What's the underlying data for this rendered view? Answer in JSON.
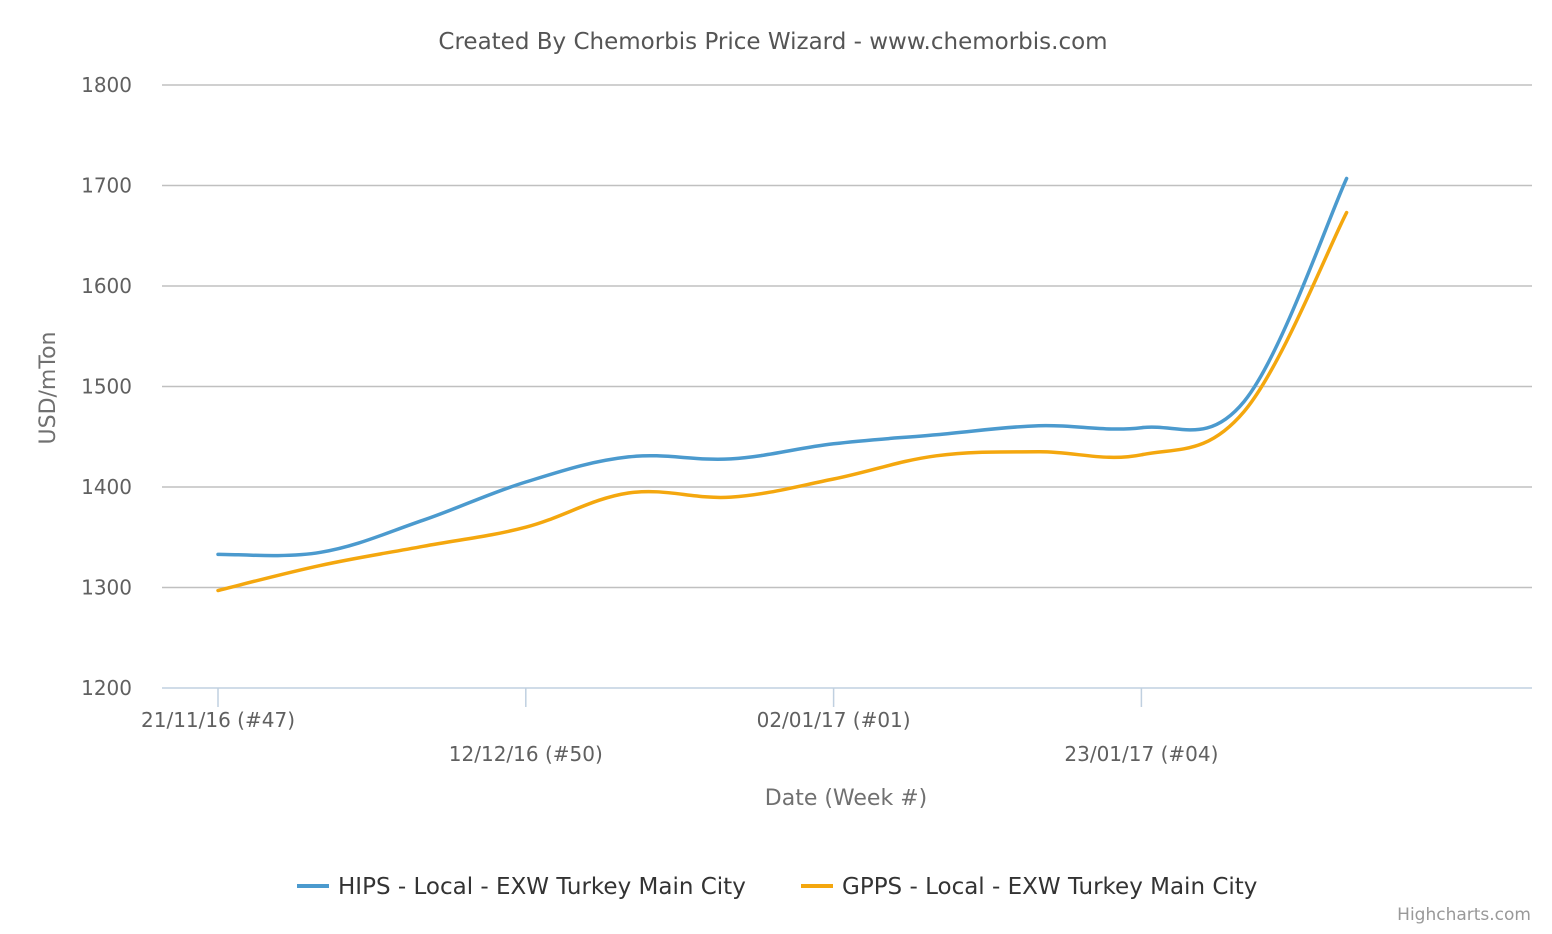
{
  "chart_data": {
    "type": "line",
    "title": "Created By Chemorbis Price Wizard - www.chemorbis.com",
    "xlabel": "Date (Week #)",
    "ylabel": "USD/mTon",
    "ylim": [
      1200,
      1800
    ],
    "yticks": [
      1200,
      1300,
      1400,
      1500,
      1600,
      1700,
      1800
    ],
    "grid": true,
    "legend_position": "bottom-center",
    "x": [
      "21/11/16",
      "28/11/16",
      "05/12/16",
      "12/12/16",
      "19/12/16",
      "26/12/16",
      "02/01/17",
      "09/01/17",
      "16/01/17",
      "23/01/17",
      "30/01/17",
      "06/02/17"
    ],
    "x_tick_labels": [
      {
        "x": "21/11/16",
        "label": "21/11/16 (#47)"
      },
      {
        "x": "12/12/16",
        "label": "12/12/16 (#50)"
      },
      {
        "x": "02/01/17",
        "label": "02/01/17 (#01)"
      },
      {
        "x": "23/01/17",
        "label": "23/01/17 (#04)"
      }
    ],
    "series": [
      {
        "name": "HIPS - Local - EXW Turkey Main City",
        "color": "#4b9ace",
        "values": [
          1333,
          1335,
          1367,
          1405,
          1430,
          1428,
          1443,
          1452,
          1461,
          1459,
          1485,
          1707
        ]
      },
      {
        "name": "GPPS - Local - EXW Turkey Main City",
        "color": "#f4a70e",
        "values": [
          1297,
          1322,
          1341,
          1360,
          1394,
          1390,
          1408,
          1431,
          1435,
          1432,
          1475,
          1673
        ]
      }
    ]
  },
  "credits": "Highcharts.com"
}
